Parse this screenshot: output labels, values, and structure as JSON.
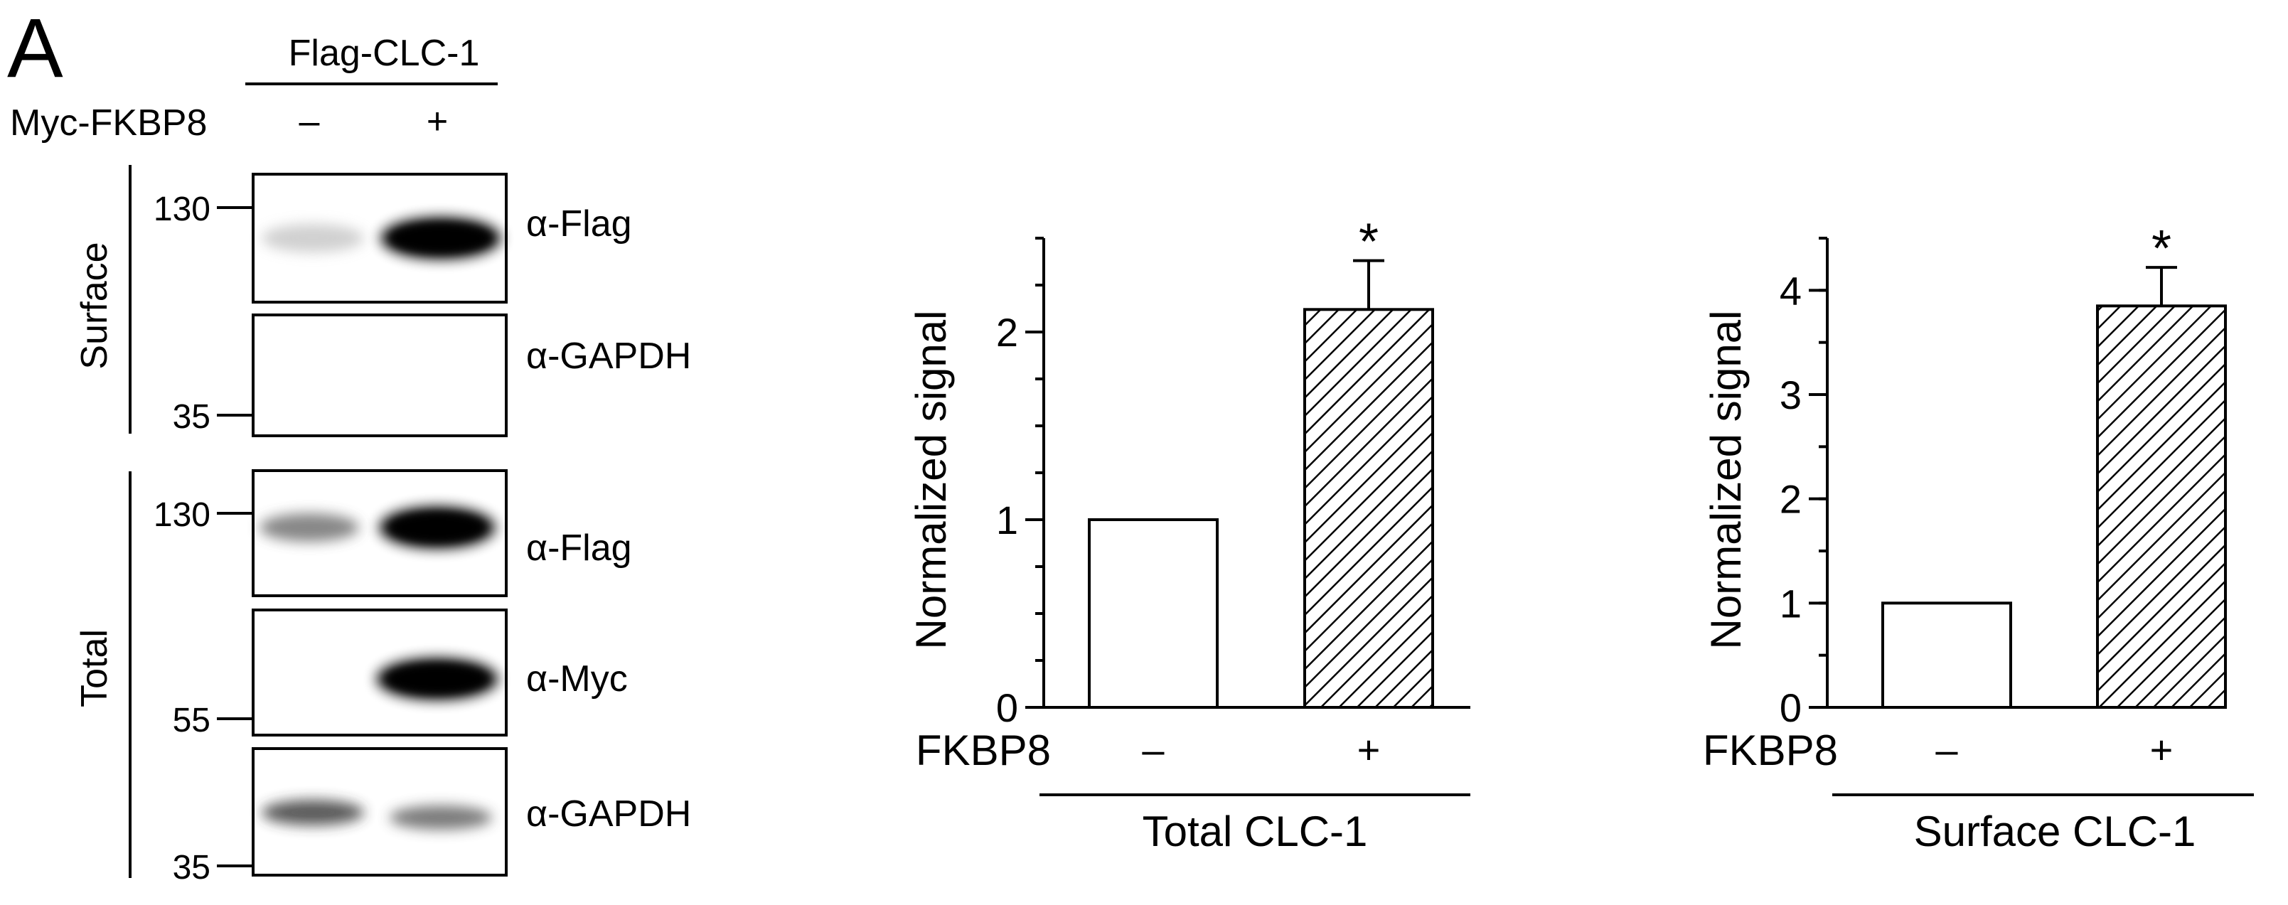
{
  "panel_letter": "A",
  "blot": {
    "top_header": "Flag-CLC-1",
    "row_label": "Myc-FKBP8",
    "condition_minus": "–",
    "condition_plus": "+",
    "section_surface": "Surface",
    "section_total": "Total",
    "antibodies": {
      "surface_flag": "α-Flag",
      "surface_gapdh": "α-GAPDH",
      "total_flag": "α-Flag",
      "total_myc": "α-Myc",
      "total_gapdh": "α-GAPDH"
    },
    "markers": {
      "surface_130": "130",
      "surface_35": "35",
      "total_130": "130",
      "total_55": "55",
      "total_35": "35"
    }
  },
  "chart_data": [
    {
      "type": "bar",
      "ylabel": "Normalized signal",
      "xlabel": "Total CLC-1",
      "factor_label": "FKBP8",
      "categories": [
        "–",
        "+"
      ],
      "values": [
        1.0,
        2.12
      ],
      "errors": [
        0,
        0.26
      ],
      "significance": [
        "",
        "*"
      ],
      "ylim": [
        0,
        2.5
      ],
      "yticks": [
        "0",
        "1",
        "2"
      ],
      "bar_styles": [
        "open",
        "hatched"
      ],
      "grid": false
    },
    {
      "type": "bar",
      "ylabel": "Normalized signal",
      "xlabel": "Surface CLC-1",
      "factor_label": "FKBP8",
      "categories": [
        "–",
        "+"
      ],
      "values": [
        1.0,
        3.85
      ],
      "errors": [
        0,
        0.37
      ],
      "significance": [
        "",
        "*"
      ],
      "ylim": [
        0,
        4.5
      ],
      "yticks": [
        "0",
        "1",
        "2",
        "3",
        "4"
      ],
      "bar_styles": [
        "open",
        "hatched"
      ],
      "grid": false
    }
  ]
}
